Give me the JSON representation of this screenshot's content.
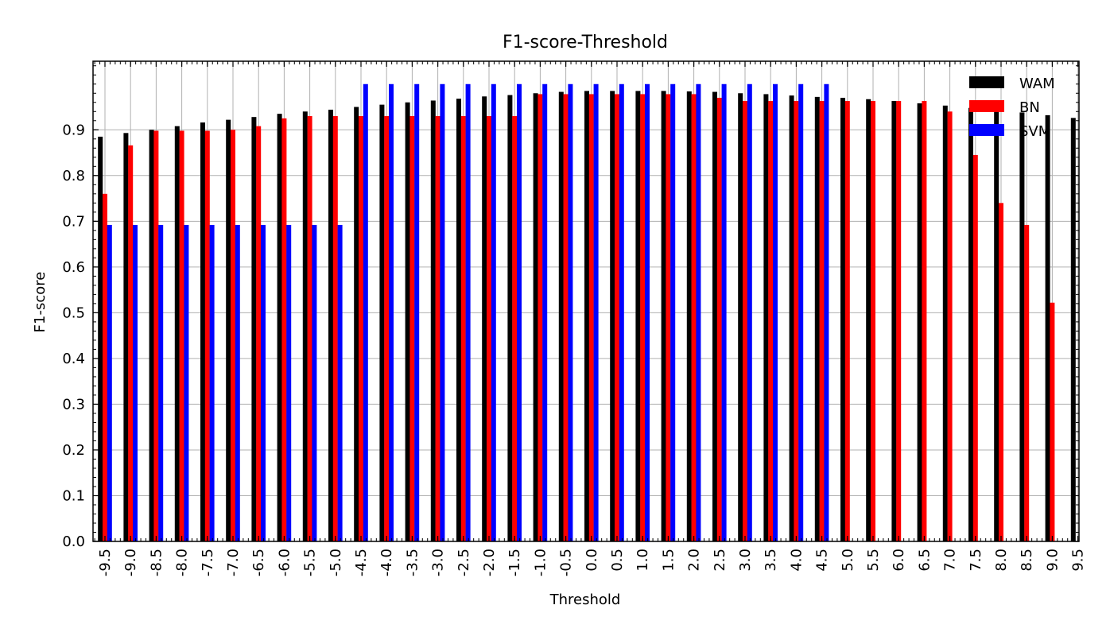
{
  "chart_data": {
    "type": "bar",
    "title": "F1-score-Threshold",
    "xlabel": "Threshold",
    "ylabel": "F1-score",
    "ylim": [
      0,
      1.05
    ],
    "yticks": [
      "0.0",
      "0.1",
      "0.2",
      "0.3",
      "0.4",
      "0.5",
      "0.6",
      "0.7",
      "0.8",
      "0.9"
    ],
    "grid": true,
    "legend_position": "top-right",
    "categories": [
      "-9.5",
      "-9.0",
      "-8.5",
      "-8.0",
      "-7.5",
      "-7.0",
      "-6.5",
      "-6.0",
      "-5.5",
      "-5.0",
      "-4.5",
      "-4.0",
      "-3.5",
      "-3.0",
      "-2.5",
      "-2.0",
      "-1.5",
      "-1.0",
      "-0.5",
      "0.0",
      "0.5",
      "1.0",
      "1.5",
      "2.0",
      "2.5",
      "3.0",
      "3.5",
      "4.0",
      "4.5",
      "5.0",
      "5.5",
      "6.0",
      "6.5",
      "7.0",
      "7.5",
      "8.0",
      "8.5",
      "9.0",
      "9.5"
    ],
    "series": [
      {
        "name": "WAM",
        "color": "#000000",
        "values": [
          0.885,
          0.893,
          0.9,
          0.908,
          0.916,
          0.922,
          0.928,
          0.935,
          0.94,
          0.944,
          0.95,
          0.955,
          0.96,
          0.964,
          0.968,
          0.973,
          0.976,
          0.98,
          0.983,
          0.985,
          0.985,
          0.985,
          0.985,
          0.984,
          0.983,
          0.98,
          0.978,
          0.975,
          0.972,
          0.97,
          0.967,
          0.963,
          0.958,
          0.953,
          0.948,
          0.943,
          0.938,
          0.932,
          0.926
        ]
      },
      {
        "name": "BN",
        "color": "#ff0000",
        "values": [
          0.76,
          0.866,
          0.898,
          0.898,
          0.898,
          0.9,
          0.908,
          0.925,
          0.93,
          0.93,
          0.93,
          0.93,
          0.93,
          0.93,
          0.93,
          0.93,
          0.93,
          0.978,
          0.978,
          0.978,
          0.978,
          0.978,
          0.978,
          0.978,
          0.97,
          0.963,
          0.963,
          0.963,
          0.963,
          0.963,
          0.963,
          0.963,
          0.963,
          0.94,
          0.845,
          0.74,
          0.692,
          0.522,
          null
        ]
      },
      {
        "name": "SVM",
        "color": "#0000ff",
        "values": [
          0.692,
          0.692,
          0.692,
          0.692,
          0.692,
          0.692,
          0.692,
          0.692,
          0.692,
          0.692,
          1.0,
          1.0,
          1.0,
          1.0,
          1.0,
          1.0,
          1.0,
          1.0,
          1.0,
          1.0,
          1.0,
          1.0,
          1.0,
          1.0,
          1.0,
          1.0,
          1.0,
          1.0,
          1.0,
          null,
          null,
          null,
          null,
          null,
          null,
          null,
          null,
          null,
          null
        ]
      }
    ]
  }
}
